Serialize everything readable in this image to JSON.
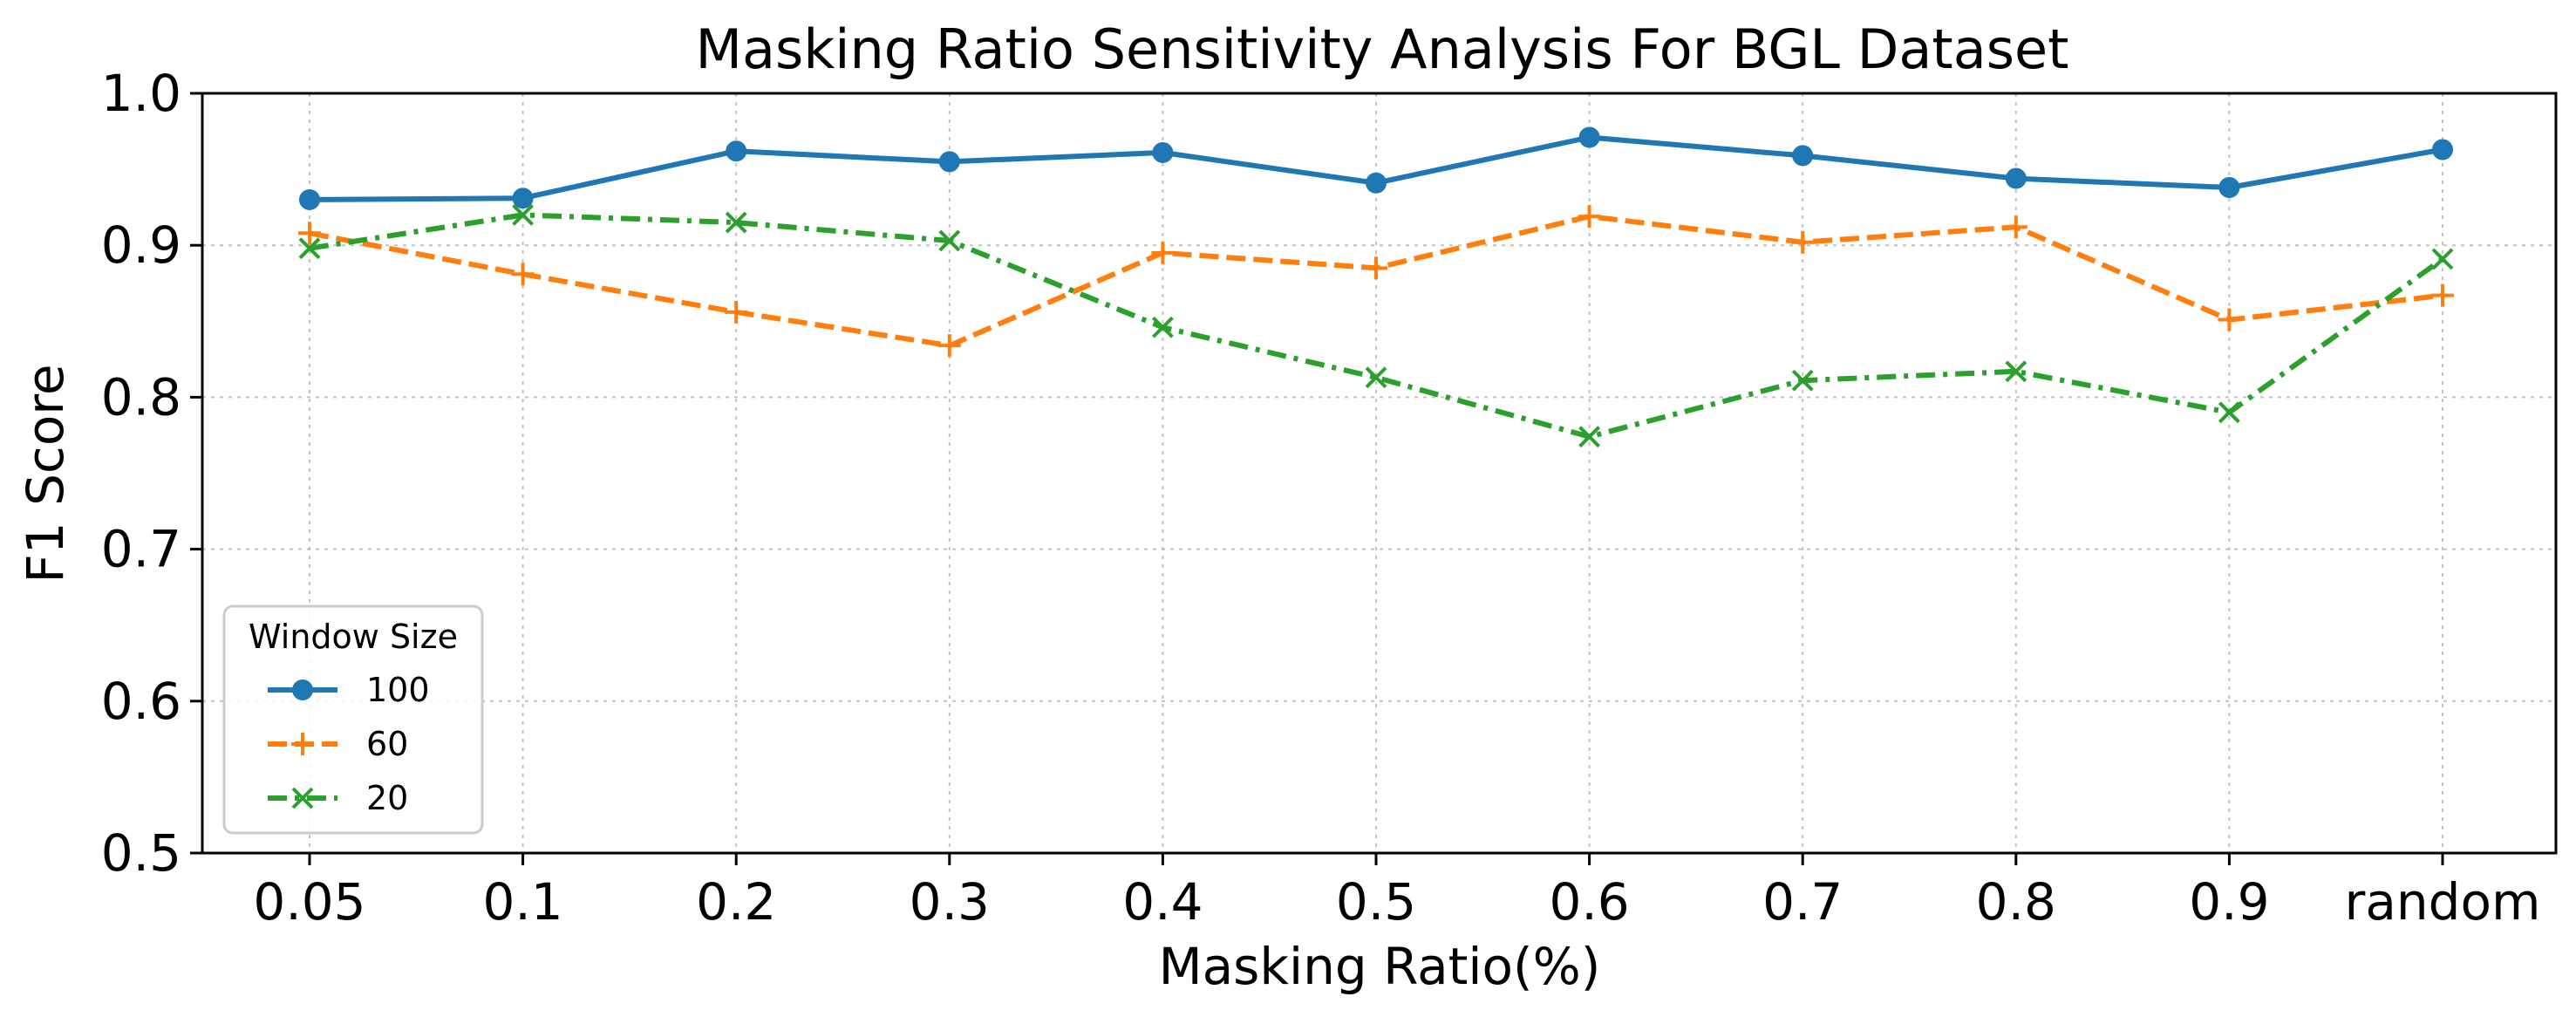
{
  "chart_data": {
    "type": "line",
    "title": "Masking Ratio Sensitivity Analysis For BGL Dataset",
    "xlabel": "Masking Ratio(%)",
    "ylabel": "F1 Score",
    "categories": [
      "0.05",
      "0.1",
      "0.2",
      "0.3",
      "0.4",
      "0.5",
      "0.6",
      "0.7",
      "0.8",
      "0.9",
      "random"
    ],
    "ylim": [
      0.5,
      1.0
    ],
    "yticks": [
      "0.5",
      "0.6",
      "0.7",
      "0.8",
      "0.9",
      "1.0"
    ],
    "grid": true,
    "legend": {
      "title": "Window Size",
      "placement": "lower-left"
    },
    "series": [
      {
        "name": "100",
        "color": "#1f77b4",
        "linestyle": "solid",
        "marker": "circle",
        "values": [
          0.93,
          0.931,
          0.962,
          0.955,
          0.961,
          0.941,
          0.971,
          0.959,
          0.944,
          0.938,
          0.963
        ]
      },
      {
        "name": "60",
        "color": "#ff7f0e",
        "linestyle": "dashed",
        "marker": "plus",
        "values": [
          0.908,
          0.881,
          0.856,
          0.834,
          0.895,
          0.885,
          0.919,
          0.902,
          0.912,
          0.851,
          0.867
        ]
      },
      {
        "name": "20",
        "color": "#2ca02c",
        "linestyle": "dashdot",
        "marker": "x",
        "values": [
          0.898,
          0.92,
          0.915,
          0.903,
          0.846,
          0.813,
          0.774,
          0.811,
          0.817,
          0.79,
          0.891
        ]
      }
    ]
  }
}
